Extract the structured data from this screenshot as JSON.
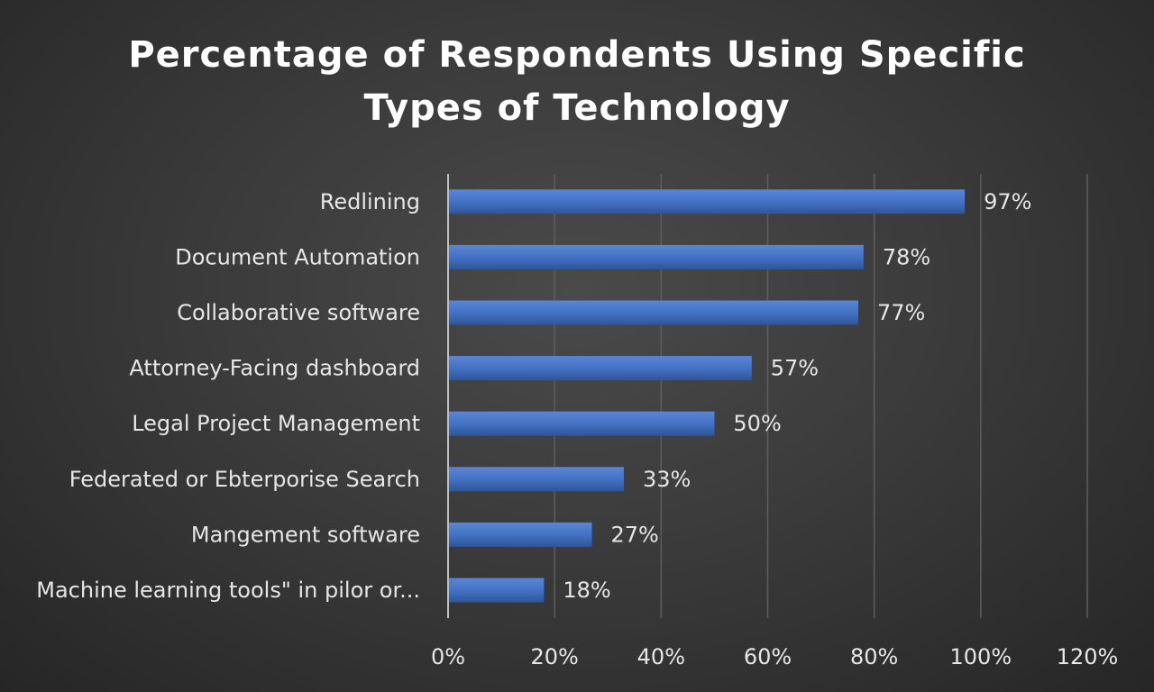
{
  "chart_data": {
    "type": "bar",
    "orientation": "horizontal",
    "title": "Percentage of Respondents Using Specific Types of Technology",
    "title_lines": [
      "Percentage of Respondents Using Specific",
      "Types of Technology"
    ],
    "categories": [
      "Redlining",
      "Document Automation",
      "Collaborative software",
      "Attorney-Facing dashboard",
      "Legal Project Management",
      "Federated or Ebterporise Search",
      "Mangement software",
      "Machine learning tools\" in pilor or..."
    ],
    "values": [
      97,
      78,
      77,
      57,
      50,
      33,
      27,
      18
    ],
    "data_labels": [
      "97%",
      "78%",
      "77%",
      "57%",
      "50%",
      "33%",
      "27%",
      "18%"
    ],
    "xlim": [
      0,
      120
    ],
    "x_ticks": [
      0,
      20,
      40,
      60,
      80,
      100,
      120
    ],
    "x_tick_labels": [
      "0%",
      "20%",
      "40%",
      "60%",
      "80%",
      "100%",
      "120%"
    ],
    "xlabel": "",
    "ylabel": "",
    "grid": true,
    "legend": "none",
    "bar_color": "#4472c4",
    "bar_color_light": "#5b86d6",
    "bar_color_dark": "#2f5597"
  }
}
